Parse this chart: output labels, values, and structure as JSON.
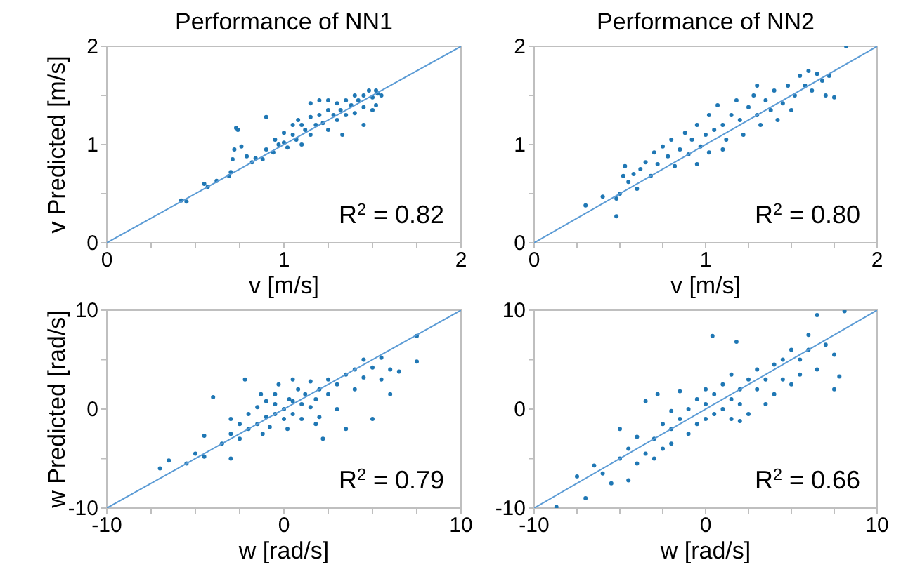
{
  "chart_data": [
    {
      "type": "scatter",
      "title": "Performance of NN1",
      "xlabel": "v [m/s]",
      "ylabel": "v Predicted [m/s]",
      "xlim": [
        0,
        2
      ],
      "ylim": [
        0,
        2
      ],
      "xticks": [
        0,
        {
          "value": 0.25,
          "label": null
        },
        {
          "value": 0.5,
          "label": null
        },
        {
          "value": 0.75,
          "label": null
        },
        1,
        {
          "value": 1.25,
          "label": null
        },
        {
          "value": 1.5,
          "label": null
        },
        {
          "value": 1.75,
          "label": null
        },
        2
      ],
      "yticks": [
        0,
        {
          "value": 0.5,
          "label": null
        },
        1,
        {
          "value": 1.5,
          "label": null
        },
        2
      ],
      "annotations": [
        "R$^{2}$ = 0.82"
      ],
      "series": [
        {
          "marker": "circle",
          "color": "#1f77b4",
          "x": [
            0.42,
            0.45,
            0.55,
            0.57,
            0.62,
            0.69,
            0.7,
            0.71,
            0.72,
            0.74,
            0.73,
            0.76,
            0.79,
            0.82,
            0.84,
            0.88,
            0.9,
            0.9,
            0.94,
            0.97,
            1.0,
            1.02,
            1.05,
            1.07,
            1.1,
            1.12,
            1.15,
            1.15,
            1.18,
            1.2,
            1.22,
            1.25,
            1.25,
            1.28,
            1.3,
            1.3,
            1.32,
            1.35,
            1.35,
            1.38,
            1.4,
            1.4,
            1.42,
            1.45,
            1.45,
            1.48,
            1.5,
            1.52,
            1.53,
            1.55,
            1.52,
            1.5,
            1.45,
            1.33,
            1.15,
            1.08,
            1.2,
            1.0,
            1.25,
            1.1,
            0.95,
            1.05
          ],
          "values": [
            0.43,
            0.42,
            0.6,
            0.57,
            0.63,
            0.68,
            0.72,
            0.85,
            0.95,
            1.15,
            1.17,
            0.98,
            0.88,
            0.82,
            0.86,
            0.85,
            1.28,
            0.95,
            0.92,
            1.0,
            1.02,
            0.97,
            1.1,
            1.05,
            1.2,
            1.15,
            1.28,
            1.1,
            1.2,
            1.3,
            1.22,
            1.35,
            1.15,
            1.3,
            1.42,
            1.25,
            1.35,
            1.45,
            1.3,
            1.4,
            1.5,
            1.32,
            1.45,
            1.5,
            1.38,
            1.55,
            1.48,
            1.55,
            1.52,
            1.5,
            1.4,
            1.35,
            1.2,
            1.1,
            1.42,
            1.25,
            1.45,
            1.12,
            1.45,
            1.0,
            1.05,
            1.2
          ]
        },
        {
          "type": "line",
          "color": "#5b9bd5",
          "x": [
            0,
            2
          ],
          "values": [
            0,
            2
          ]
        }
      ]
    },
    {
      "type": "scatter",
      "title": "Performance of NN2",
      "xlabel": "v [m/s]",
      "xlim": [
        0,
        2
      ],
      "ylim": [
        0,
        2
      ],
      "xticks": [
        0,
        {
          "value": 0.25,
          "label": null
        },
        {
          "value": 0.5,
          "label": null
        },
        {
          "value": 0.75,
          "label": null
        },
        1,
        {
          "value": 1.25,
          "label": null
        },
        {
          "value": 1.5,
          "label": null
        },
        {
          "value": 1.75,
          "label": null
        },
        2
      ],
      "yticks": [
        0,
        {
          "value": 0.5,
          "label": null
        },
        1,
        {
          "value": 1.5,
          "label": null
        },
        2
      ],
      "annotations": [
        "R$^{2}$ = 0.80"
      ],
      "series": [
        {
          "marker": "circle",
          "color": "#1f77b4",
          "x": [
            0.3,
            0.4,
            0.48,
            0.48,
            0.5,
            0.52,
            0.53,
            0.55,
            0.58,
            0.6,
            0.62,
            0.65,
            0.68,
            0.7,
            0.72,
            0.75,
            0.78,
            0.8,
            0.82,
            0.85,
            0.88,
            0.9,
            0.92,
            0.95,
            0.97,
            1.0,
            1.02,
            1.02,
            1.05,
            1.07,
            1.1,
            1.12,
            1.15,
            1.18,
            1.2,
            1.22,
            1.25,
            1.28,
            1.3,
            1.32,
            1.35,
            1.38,
            1.4,
            1.42,
            1.45,
            1.48,
            1.5,
            1.52,
            1.55,
            1.58,
            1.6,
            1.62,
            1.65,
            1.68,
            1.7,
            1.72,
            1.75,
            1.82,
            1.3,
            1.1,
            0.95
          ],
          "values": [
            0.38,
            0.47,
            0.27,
            0.45,
            0.5,
            0.68,
            0.78,
            0.62,
            0.7,
            0.55,
            0.75,
            0.82,
            0.68,
            0.92,
            0.8,
            0.98,
            0.88,
            1.05,
            0.78,
            0.95,
            1.12,
            0.9,
            1.05,
            1.2,
            0.98,
            1.1,
            1.3,
            0.92,
            1.15,
            1.4,
            1.2,
            1.05,
            1.3,
            1.45,
            1.25,
            1.1,
            1.38,
            1.5,
            1.3,
            1.2,
            1.45,
            1.35,
            1.55,
            1.25,
            1.42,
            1.6,
            1.35,
            1.5,
            1.7,
            1.6,
            1.75,
            1.55,
            1.72,
            1.65,
            1.5,
            1.7,
            1.48,
            2.0,
            1.6,
            0.95,
            0.8
          ]
        },
        {
          "type": "line",
          "color": "#5b9bd5",
          "x": [
            0,
            2
          ],
          "values": [
            0,
            2
          ]
        }
      ]
    },
    {
      "type": "scatter",
      "xlabel": "w [rad/s]",
      "ylabel": "w Predicted [rad/s]",
      "xlim": [
        -10,
        10
      ],
      "ylim": [
        -10,
        10
      ],
      "xticks": [
        -10,
        {
          "value": -7.5,
          "label": null
        },
        {
          "value": -5,
          "label": null
        },
        {
          "value": -2.5,
          "label": null
        },
        0,
        {
          "value": 2.5,
          "label": null
        },
        {
          "value": 5,
          "label": null
        },
        {
          "value": 7.5,
          "label": null
        },
        10
      ],
      "yticks": [
        -10,
        {
          "value": -5,
          "label": null
        },
        0,
        {
          "value": 5,
          "label": null
        },
        10
      ],
      "annotations": [
        "R$^{2}$ = 0.79"
      ],
      "series": [
        {
          "marker": "circle",
          "color": "#1f77b4",
          "x": [
            -7,
            -6.5,
            -5.5,
            -5,
            -4.5,
            -4.5,
            -4,
            -3.5,
            -3,
            -3,
            -2.5,
            -2.5,
            -2,
            -2,
            -1.5,
            -1.5,
            -1,
            -1,
            -0.8,
            -0.5,
            -0.5,
            -0.3,
            0,
            0,
            0.3,
            0.5,
            0.5,
            0.8,
            1,
            1,
            1.2,
            1.5,
            1.5,
            1.8,
            2,
            2,
            2.2,
            2.5,
            2.5,
            3,
            3,
            3.5,
            3.5,
            4,
            4,
            4.5,
            4.5,
            5,
            5,
            5.5,
            5.5,
            6,
            6,
            6.5,
            7.5,
            7.5,
            -0.5,
            0.2,
            -1.2,
            1.8,
            -3,
            -2.2,
            0.5,
            -1.3
          ],
          "values": [
            -6,
            -5.2,
            -5.5,
            -4.5,
            -4.8,
            -2.7,
            1.2,
            -3.5,
            -2.5,
            -1,
            -1.5,
            -3,
            -0.5,
            -2,
            0.2,
            -1.5,
            0.8,
            -0.8,
            -1.8,
            0.5,
            -0.5,
            2.5,
            0,
            -1,
            1,
            -0.5,
            0.8,
            2,
            0.5,
            -1,
            1.5,
            0.2,
            2.8,
            1,
            2,
            -0.8,
            -3,
            1.5,
            3,
            2.5,
            0,
            3.5,
            -2,
            4,
            2,
            3.2,
            5,
            4.2,
            -1,
            5.2,
            3,
            4,
            1.5,
            3.8,
            4.8,
            7.4,
            1.5,
            -2,
            -2.5,
            -1.5,
            -5,
            3,
            3,
            1.5
          ]
        },
        {
          "type": "line",
          "color": "#5b9bd5",
          "x": [
            -10,
            10
          ],
          "values": [
            -10,
            10
          ]
        }
      ]
    },
    {
      "type": "scatter",
      "xlabel": "w [rad/s]",
      "xlim": [
        -10,
        10
      ],
      "ylim": [
        -10,
        10
      ],
      "xticks": [
        -10,
        {
          "value": -7.5,
          "label": null
        },
        {
          "value": -5,
          "label": null
        },
        {
          "value": -2.5,
          "label": null
        },
        0,
        {
          "value": 2.5,
          "label": null
        },
        {
          "value": 5,
          "label": null
        },
        {
          "value": 7.5,
          "label": null
        },
        10
      ],
      "yticks": [
        -10,
        {
          "value": -5,
          "label": null
        },
        0,
        {
          "value": 5,
          "label": null
        },
        10
      ],
      "annotations": [
        "R$^{2}$ = 0.66"
      ],
      "series": [
        {
          "marker": "circle",
          "color": "#1f77b4",
          "x": [
            -8.7,
            -7.5,
            -7,
            -6.5,
            -6,
            -5.5,
            -5,
            -4.5,
            -4.5,
            -4,
            -4,
            -3.5,
            -3,
            -3,
            -2.5,
            -2.5,
            -2,
            -2,
            -2,
            -1.5,
            -1.5,
            -1,
            -1,
            -0.5,
            -0.5,
            0,
            0,
            0,
            0.4,
            0.5,
            0.5,
            1,
            1,
            1.5,
            1.5,
            1.5,
            2,
            2,
            2.5,
            2.5,
            3,
            3,
            3.5,
            3.5,
            4,
            4,
            4.5,
            4.5,
            5,
            5,
            5.5,
            5.5,
            6,
            6,
            6.5,
            6.5,
            7,
            7.5,
            7.5,
            7.8,
            8.1,
            1.8,
            -3.5,
            -5,
            -2.8,
            2
          ],
          "values": [
            -9.9,
            -6.8,
            -9,
            -5.7,
            -6.5,
            -7.5,
            -5,
            -7.2,
            -4,
            -5.5,
            -2.8,
            -4.5,
            -3,
            -5,
            -1.5,
            -4,
            -2,
            -3.5,
            -0.2,
            1.8,
            -1,
            0,
            -2.5,
            1,
            -1.5,
            0.5,
            -1,
            2,
            7.4,
            1.5,
            -0.5,
            0,
            2.5,
            1,
            3.5,
            -1,
            2,
            0.5,
            3,
            -0.5,
            4,
            2,
            3,
            0.5,
            4.5,
            1.5,
            5,
            3,
            6,
            2.5,
            5,
            3.5,
            6,
            7.5,
            4,
            9.5,
            6.5,
            5.5,
            2,
            3.3,
            9.9,
            6.8,
            0.8,
            -2,
            1.5,
            -1.2
          ]
        },
        {
          "type": "line",
          "color": "#5b9bd5",
          "x": [
            -10,
            10
          ],
          "values": [
            -10,
            10
          ]
        }
      ]
    }
  ]
}
